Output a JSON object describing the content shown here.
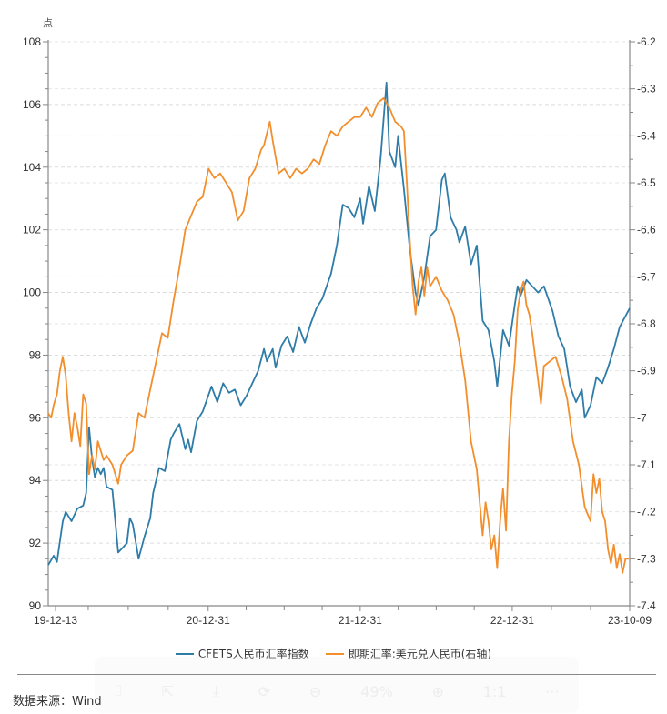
{
  "chart_data": {
    "type": "line",
    "title": "",
    "y_unit_label": "点",
    "xlabel": "",
    "ylabel_left": "点",
    "ylabel_right": "",
    "x_range": [
      "2019-12-13",
      "2023-10-09"
    ],
    "x_tick_labels": [
      "19-12-13",
      "20-12-31",
      "21-12-31",
      "22-12-31",
      "23-10-09"
    ],
    "x_tick_dates": [
      "2019-12-13",
      "2020-12-31",
      "2021-12-31",
      "2022-12-31",
      "2023-10-09"
    ],
    "y_left": {
      "ylim": [
        90,
        108
      ],
      "ticks": [
        90,
        92,
        94,
        96,
        98,
        100,
        102,
        104,
        106,
        108
      ]
    },
    "y_right": {
      "ylim": [
        -7.4,
        -6.2
      ],
      "ticks": [
        -6.2,
        -6.3,
        -6.4,
        -6.5,
        -6.6,
        -6.7,
        -6.8,
        -6.9,
        -7,
        -7.1,
        -7.2,
        -7.3,
        -7.4
      ],
      "tick_labels": [
        "-6.2",
        "-6.3",
        "-6.4",
        "-6.5",
        "-6.6",
        "-6.7",
        "-6.8",
        "-6.9",
        "-7",
        "-7.1",
        "-7.2",
        "-7.3",
        "-7.4"
      ]
    },
    "grid": "horizontal-dashed",
    "legend_position": "bottom-center",
    "series": [
      {
        "name": "CFETS人民币汇率指数",
        "axis": "left",
        "color": "#2e7ca8",
        "points": [
          [
            "2019-12-13",
            91.3
          ],
          [
            "2019-12-26",
            91.6
          ],
          [
            "2020-01-03",
            91.4
          ],
          [
            "2020-01-17",
            92.7
          ],
          [
            "2020-01-24",
            93.0
          ],
          [
            "2020-02-07",
            92.7
          ],
          [
            "2020-02-21",
            93.1
          ],
          [
            "2020-03-06",
            93.2
          ],
          [
            "2020-03-13",
            93.6
          ],
          [
            "2020-03-20",
            95.7
          ],
          [
            "2020-03-27",
            94.7
          ],
          [
            "2020-04-03",
            94.1
          ],
          [
            "2020-04-10",
            94.4
          ],
          [
            "2020-04-17",
            94.2
          ],
          [
            "2020-04-24",
            94.4
          ],
          [
            "2020-05-01",
            93.8
          ],
          [
            "2020-05-15",
            93.7
          ],
          [
            "2020-05-29",
            91.7
          ],
          [
            "2020-06-05",
            91.8
          ],
          [
            "2020-06-19",
            92.0
          ],
          [
            "2020-06-26",
            92.8
          ],
          [
            "2020-07-03",
            92.6
          ],
          [
            "2020-07-17",
            91.5
          ],
          [
            "2020-07-31",
            92.2
          ],
          [
            "2020-08-14",
            92.8
          ],
          [
            "2020-08-21",
            93.6
          ],
          [
            "2020-09-04",
            94.4
          ],
          [
            "2020-09-18",
            94.3
          ],
          [
            "2020-10-02",
            95.3
          ],
          [
            "2020-10-09",
            95.5
          ],
          [
            "2020-10-23",
            95.8
          ],
          [
            "2020-11-06",
            95.0
          ],
          [
            "2020-11-13",
            95.3
          ],
          [
            "2020-11-20",
            94.9
          ],
          [
            "2020-12-04",
            95.9
          ],
          [
            "2020-12-18",
            96.2
          ],
          [
            "2021-01-08",
            97.0
          ],
          [
            "2021-01-22",
            96.5
          ],
          [
            "2021-02-05",
            97.1
          ],
          [
            "2021-02-19",
            96.8
          ],
          [
            "2021-03-05",
            96.9
          ],
          [
            "2021-03-19",
            96.4
          ],
          [
            "2021-04-02",
            96.7
          ],
          [
            "2021-04-16",
            97.1
          ],
          [
            "2021-04-30",
            97.5
          ],
          [
            "2021-05-14",
            98.2
          ],
          [
            "2021-05-21",
            97.8
          ],
          [
            "2021-06-04",
            98.2
          ],
          [
            "2021-06-11",
            97.6
          ],
          [
            "2021-06-25",
            98.3
          ],
          [
            "2021-07-09",
            98.6
          ],
          [
            "2021-07-23",
            98.1
          ],
          [
            "2021-08-06",
            98.9
          ],
          [
            "2021-08-20",
            98.4
          ],
          [
            "2021-09-03",
            99.0
          ],
          [
            "2021-09-17",
            99.5
          ],
          [
            "2021-10-01",
            99.8
          ],
          [
            "2021-10-22",
            100.6
          ],
          [
            "2021-11-05",
            101.5
          ],
          [
            "2021-11-19",
            102.8
          ],
          [
            "2021-12-03",
            102.7
          ],
          [
            "2021-12-17",
            102.4
          ],
          [
            "2021-12-31",
            103.0
          ],
          [
            "2022-01-07",
            102.2
          ],
          [
            "2022-01-21",
            103.4
          ],
          [
            "2022-02-04",
            102.6
          ],
          [
            "2022-02-18",
            104.3
          ],
          [
            "2022-03-04",
            106.7
          ],
          [
            "2022-03-11",
            104.5
          ],
          [
            "2022-03-25",
            104.0
          ],
          [
            "2022-04-01",
            105.0
          ],
          [
            "2022-04-15",
            103.3
          ],
          [
            "2022-04-29",
            101.4
          ],
          [
            "2022-05-13",
            100.0
          ],
          [
            "2022-05-20",
            99.6
          ],
          [
            "2022-06-03",
            100.5
          ],
          [
            "2022-06-17",
            101.8
          ],
          [
            "2022-07-01",
            102.0
          ],
          [
            "2022-07-15",
            103.6
          ],
          [
            "2022-07-22",
            103.8
          ],
          [
            "2022-08-05",
            102.4
          ],
          [
            "2022-08-19",
            102.0
          ],
          [
            "2022-08-26",
            101.6
          ],
          [
            "2022-09-09",
            102.1
          ],
          [
            "2022-09-23",
            100.9
          ],
          [
            "2022-10-07",
            101.5
          ],
          [
            "2022-10-21",
            99.1
          ],
          [
            "2022-11-04",
            98.8
          ],
          [
            "2022-11-18",
            97.8
          ],
          [
            "2022-11-25",
            97.0
          ],
          [
            "2022-12-09",
            98.8
          ],
          [
            "2022-12-23",
            98.3
          ],
          [
            "2023-01-06",
            99.6
          ],
          [
            "2023-01-13",
            100.2
          ],
          [
            "2023-01-20",
            99.9
          ],
          [
            "2023-02-03",
            100.4
          ],
          [
            "2023-02-17",
            100.2
          ],
          [
            "2023-03-03",
            100.0
          ],
          [
            "2023-03-17",
            100.2
          ],
          [
            "2023-04-07",
            99.4
          ],
          [
            "2023-04-21",
            98.6
          ],
          [
            "2023-05-05",
            98.2
          ],
          [
            "2023-05-19",
            97.0
          ],
          [
            "2023-06-02",
            96.5
          ],
          [
            "2023-06-16",
            96.9
          ],
          [
            "2023-06-23",
            96.0
          ],
          [
            "2023-07-07",
            96.4
          ],
          [
            "2023-07-21",
            97.3
          ],
          [
            "2023-08-04",
            97.1
          ],
          [
            "2023-08-18",
            97.6
          ],
          [
            "2023-09-01",
            98.2
          ],
          [
            "2023-09-15",
            98.9
          ],
          [
            "2023-10-09",
            99.5
          ]
        ]
      },
      {
        "name": "即期汇率:美元兑人民币(右轴)",
        "axis": "right",
        "color": "#f28e2b",
        "points": [
          [
            "2019-12-13",
            -6.99
          ],
          [
            "2019-12-20",
            -7.0
          ],
          [
            "2019-12-27",
            -6.97
          ],
          [
            "2020-01-03",
            -6.95
          ],
          [
            "2020-01-10",
            -6.9
          ],
          [
            "2020-01-17",
            -6.87
          ],
          [
            "2020-01-24",
            -6.91
          ],
          [
            "2020-01-31",
            -6.99
          ],
          [
            "2020-02-07",
            -7.05
          ],
          [
            "2020-02-14",
            -6.99
          ],
          [
            "2020-02-21",
            -7.02
          ],
          [
            "2020-02-28",
            -7.06
          ],
          [
            "2020-03-06",
            -6.95
          ],
          [
            "2020-03-13",
            -6.97
          ],
          [
            "2020-03-20",
            -7.12
          ],
          [
            "2020-03-27",
            -7.08
          ],
          [
            "2020-04-03",
            -7.11
          ],
          [
            "2020-04-10",
            -7.05
          ],
          [
            "2020-04-17",
            -7.07
          ],
          [
            "2020-04-24",
            -7.09
          ],
          [
            "2020-05-01",
            -7.08
          ],
          [
            "2020-05-15",
            -7.1
          ],
          [
            "2020-05-29",
            -7.14
          ],
          [
            "2020-06-05",
            -7.1
          ],
          [
            "2020-06-19",
            -7.08
          ],
          [
            "2020-07-03",
            -7.07
          ],
          [
            "2020-07-17",
            -6.99
          ],
          [
            "2020-07-31",
            -7.0
          ],
          [
            "2020-08-14",
            -6.94
          ],
          [
            "2020-08-28",
            -6.88
          ],
          [
            "2020-09-11",
            -6.82
          ],
          [
            "2020-09-25",
            -6.83
          ],
          [
            "2020-10-09",
            -6.75
          ],
          [
            "2020-10-23",
            -6.68
          ],
          [
            "2020-11-06",
            -6.6
          ],
          [
            "2020-11-20",
            -6.57
          ],
          [
            "2020-12-04",
            -6.54
          ],
          [
            "2020-12-18",
            -6.53
          ],
          [
            "2021-01-01",
            -6.47
          ],
          [
            "2021-01-15",
            -6.49
          ],
          [
            "2021-01-29",
            -6.48
          ],
          [
            "2021-02-12",
            -6.5
          ],
          [
            "2021-02-26",
            -6.52
          ],
          [
            "2021-03-12",
            -6.58
          ],
          [
            "2021-03-26",
            -6.56
          ],
          [
            "2021-04-09",
            -6.49
          ],
          [
            "2021-04-23",
            -6.47
          ],
          [
            "2021-05-07",
            -6.43
          ],
          [
            "2021-05-14",
            -6.42
          ],
          [
            "2021-05-28",
            -6.37
          ],
          [
            "2021-06-04",
            -6.41
          ],
          [
            "2021-06-18",
            -6.48
          ],
          [
            "2021-07-02",
            -6.47
          ],
          [
            "2021-07-16",
            -6.49
          ],
          [
            "2021-07-30",
            -6.47
          ],
          [
            "2021-08-13",
            -6.48
          ],
          [
            "2021-08-27",
            -6.47
          ],
          [
            "2021-09-10",
            -6.45
          ],
          [
            "2021-09-24",
            -6.46
          ],
          [
            "2021-10-08",
            -6.42
          ],
          [
            "2021-10-22",
            -6.39
          ],
          [
            "2021-11-05",
            -6.4
          ],
          [
            "2021-11-19",
            -6.38
          ],
          [
            "2021-12-03",
            -6.37
          ],
          [
            "2021-12-17",
            -6.36
          ],
          [
            "2021-12-31",
            -6.36
          ],
          [
            "2022-01-14",
            -6.34
          ],
          [
            "2022-01-28",
            -6.36
          ],
          [
            "2022-02-11",
            -6.33
          ],
          [
            "2022-02-25",
            -6.32
          ],
          [
            "2022-03-11",
            -6.34
          ],
          [
            "2022-03-25",
            -6.37
          ],
          [
            "2022-04-08",
            -6.38
          ],
          [
            "2022-04-15",
            -6.39
          ],
          [
            "2022-04-22",
            -6.5
          ],
          [
            "2022-04-29",
            -6.62
          ],
          [
            "2022-05-06",
            -6.72
          ],
          [
            "2022-05-13",
            -6.78
          ],
          [
            "2022-05-20",
            -6.71
          ],
          [
            "2022-05-27",
            -6.68
          ],
          [
            "2022-06-03",
            -6.74
          ],
          [
            "2022-06-10",
            -6.68
          ],
          [
            "2022-06-17",
            -6.72
          ],
          [
            "2022-07-01",
            -6.7
          ],
          [
            "2022-07-15",
            -6.73
          ],
          [
            "2022-07-29",
            -6.75
          ],
          [
            "2022-08-12",
            -6.78
          ],
          [
            "2022-08-26",
            -6.84
          ],
          [
            "2022-09-09",
            -6.92
          ],
          [
            "2022-09-23",
            -7.05
          ],
          [
            "2022-10-07",
            -7.11
          ],
          [
            "2022-10-21",
            -7.25
          ],
          [
            "2022-10-28",
            -7.18
          ],
          [
            "2022-11-04",
            -7.22
          ],
          [
            "2022-11-11",
            -7.28
          ],
          [
            "2022-11-18",
            -7.25
          ],
          [
            "2022-11-25",
            -7.32
          ],
          [
            "2022-12-02",
            -7.22
          ],
          [
            "2022-12-09",
            -7.15
          ],
          [
            "2022-12-16",
            -7.24
          ],
          [
            "2022-12-23",
            -7.05
          ],
          [
            "2022-12-30",
            -6.95
          ],
          [
            "2023-01-06",
            -6.88
          ],
          [
            "2023-01-13",
            -6.77
          ],
          [
            "2023-01-20",
            -6.73
          ],
          [
            "2023-01-27",
            -6.71
          ],
          [
            "2023-02-03",
            -6.76
          ],
          [
            "2023-02-10",
            -6.78
          ],
          [
            "2023-02-17",
            -6.82
          ],
          [
            "2023-02-24",
            -6.87
          ],
          [
            "2023-03-03",
            -6.92
          ],
          [
            "2023-03-10",
            -6.97
          ],
          [
            "2023-03-17",
            -6.89
          ],
          [
            "2023-03-31",
            -6.88
          ],
          [
            "2023-04-14",
            -6.87
          ],
          [
            "2023-04-28",
            -6.91
          ],
          [
            "2023-05-12",
            -6.96
          ],
          [
            "2023-05-26",
            -7.05
          ],
          [
            "2023-06-09",
            -7.1
          ],
          [
            "2023-06-23",
            -7.19
          ],
          [
            "2023-07-07",
            -7.22
          ],
          [
            "2023-07-14",
            -7.12
          ],
          [
            "2023-07-21",
            -7.16
          ],
          [
            "2023-07-28",
            -7.13
          ],
          [
            "2023-08-04",
            -7.2
          ],
          [
            "2023-08-11",
            -7.22
          ],
          [
            "2023-08-18",
            -7.28
          ],
          [
            "2023-08-25",
            -7.31
          ],
          [
            "2023-09-01",
            -7.27
          ],
          [
            "2023-09-08",
            -7.32
          ],
          [
            "2023-09-15",
            -7.29
          ],
          [
            "2023-09-22",
            -7.33
          ],
          [
            "2023-09-29",
            -7.3
          ],
          [
            "2023-10-09",
            -7.3
          ]
        ]
      }
    ]
  },
  "legend": [
    {
      "label": "CFETS人民币汇率指数",
      "color": "#2e7ca8"
    },
    {
      "label": "即期汇率:美元兑人民币(右轴)",
      "color": "#f28e2b"
    }
  ],
  "footer": {
    "source": "数据来源：Wind"
  },
  "overlay_toolbar": {
    "zoom_level": "49%",
    "buttons": [
      "ocr-icon",
      "share-icon",
      "download-icon",
      "rotate-icon",
      "zoom-out-icon",
      "zoom-in-icon",
      "actual-size-icon",
      "more-icon"
    ],
    "actual_size_label": "1:1",
    "more_label": "···"
  }
}
